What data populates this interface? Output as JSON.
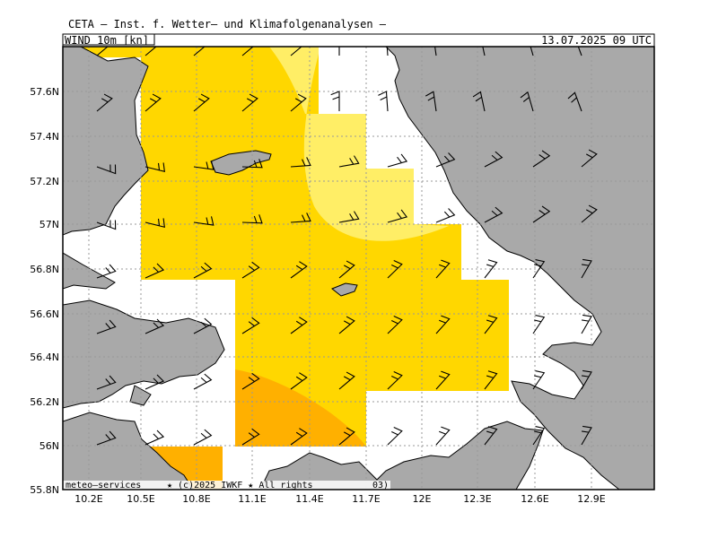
{
  "header": {
    "title": "CETA — Inst. f. Wetter— und Klimafolgenanalysen —",
    "parameter": "WIND  10m  [kn]",
    "datetime": "13.07.2025  09  UTC"
  },
  "axes": {
    "lat_labels": [
      "57.6N",
      "57.4N",
      "57.2N",
      "57N",
      "56.8N",
      "56.6N",
      "56.4N",
      "56.2N",
      "56N",
      "55.8N"
    ],
    "lon_labels": [
      "10.2E",
      "10.5E",
      "10.8E",
      "11.1E",
      "11.4E",
      "11.7E",
      "12E",
      "12.3E",
      "12.6E",
      "12.9E"
    ]
  },
  "footer": {
    "source": "meteo—services",
    "copyright": "★ (c)2025 IWKF ★ All rights",
    "code": "03)"
  },
  "legend_colors": {
    "light_yellow": "#FFEE66",
    "yellow": "#FFD700",
    "orange": "#FFB000",
    "land": "#A9A9A9",
    "sea": "#FFFFFF"
  }
}
